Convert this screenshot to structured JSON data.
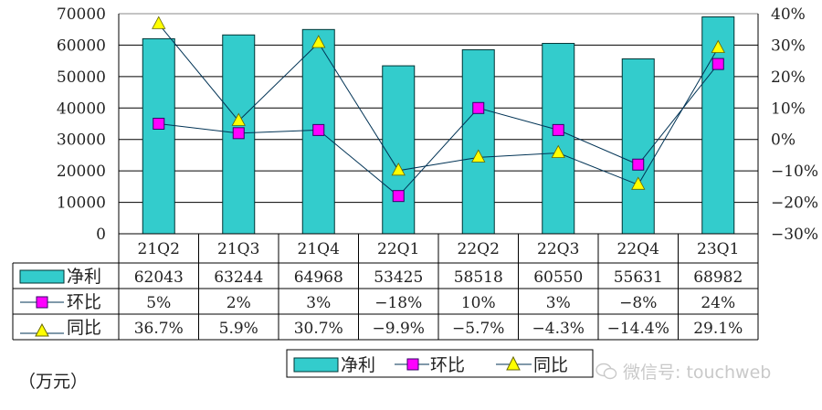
{
  "chart_data": {
    "type": "bar+line",
    "title": "",
    "categories": [
      "21Q2",
      "21Q3",
      "21Q4",
      "22Q1",
      "22Q2",
      "22Q3",
      "22Q4",
      "23Q1"
    ],
    "series": [
      {
        "name": "净利",
        "type": "bar",
        "axis": "left",
        "color": "#33CCCC",
        "values": [
          62043,
          63244,
          64968,
          53425,
          58518,
          60550,
          55631,
          68982
        ],
        "labels": [
          "62043",
          "63244",
          "64968",
          "53425",
          "58518",
          "60550",
          "55631",
          "68982"
        ]
      },
      {
        "name": "环比",
        "type": "line",
        "axis": "right",
        "marker": "square",
        "color": "#FF00FF",
        "values": [
          5,
          2,
          3,
          -18,
          10,
          3,
          -8,
          24
        ],
        "labels": [
          "5%",
          "2%",
          "3%",
          "−18%",
          "10%",
          "3%",
          "−8%",
          "24%"
        ]
      },
      {
        "name": "同比",
        "type": "line",
        "axis": "right",
        "marker": "triangle",
        "color": "#FFFF00",
        "values": [
          36.7,
          5.9,
          30.7,
          -9.9,
          -5.7,
          -4.3,
          -14.4,
          29.1
        ],
        "labels": [
          "36.7%",
          "5.9%",
          "30.7%",
          "−9.9%",
          "−5.7%",
          "−4.3%",
          "−14.4%",
          "29.1%"
        ]
      }
    ],
    "ylabel": "（万元）",
    "ylim": [
      0,
      70000
    ],
    "yticks": [
      "70000",
      "60000",
      "50000",
      "40000",
      "30000",
      "20000",
      "10000",
      "0"
    ],
    "y2lim": [
      -30,
      40
    ],
    "y2ticks": [
      "40%",
      "30%",
      "20%",
      "10%",
      "0%",
      "−10%",
      "−20%",
      "−30%"
    ],
    "grid": true,
    "legend_position": "bottom",
    "data_table": true
  },
  "legend": {
    "items": [
      "净利",
      "环比",
      "同比"
    ]
  },
  "unit_label": "（万元）",
  "watermark": {
    "text": "微信号: touchweb"
  }
}
